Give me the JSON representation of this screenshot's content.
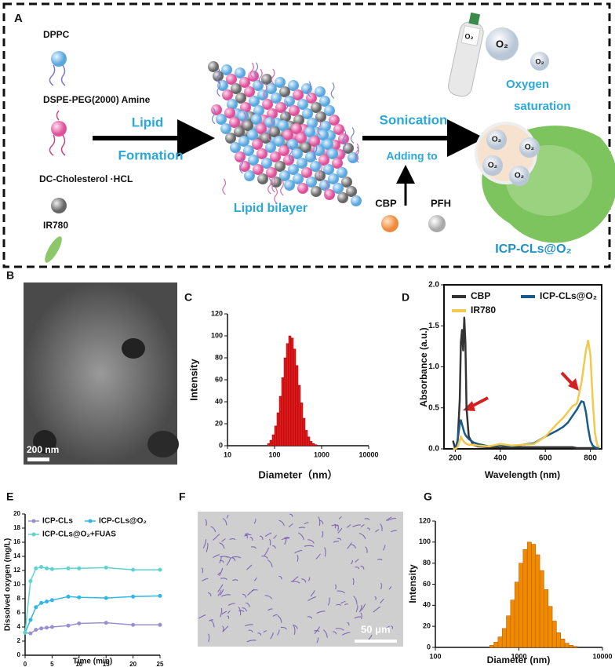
{
  "panel_labels": [
    "A",
    "B",
    "C",
    "D",
    "E",
    "F",
    "G"
  ],
  "diagram": {
    "components": [
      "DPPC",
      "DSPE-PEG(2000) Amine",
      "DC-Cholesterol ·HCL",
      "IR780"
    ],
    "arrow1_top": "Lipid",
    "arrow1_bottom": "Formation",
    "bilayer_label": "Lipid bilayer",
    "arrow2_top": "Sonication",
    "arrow2_bottom": "Adding to",
    "additives": [
      "CBP",
      "PFH"
    ],
    "oxygen_lines": [
      "Oxygen",
      "saturation"
    ],
    "o2_labels": [
      "O₂",
      "O₂",
      "O₂",
      "O₂",
      "O₂",
      "O₂",
      "O₂"
    ],
    "product": "ICP-CLs@O₂"
  },
  "micrographs": {
    "B_scale": "200 nm",
    "F_scale": "50 μm"
  },
  "chart_data": [
    {
      "type": "histogram",
      "x_label": "Diameter（nm）",
      "y_label": "Intensity",
      "color": "#e41a1c",
      "edge_color": "#8b0000",
      "log_x": true,
      "xlim": [
        10,
        10000
      ],
      "xticks": [
        10,
        100,
        1000,
        10000
      ],
      "ylim": [
        0,
        120
      ],
      "yticks": [
        0,
        20,
        40,
        60,
        80,
        100,
        120
      ],
      "bins": [
        70.8,
        79.4,
        89.1,
        100,
        112.2,
        125.9,
        141.3,
        158.5,
        177.8,
        199.5,
        223.9,
        251.2,
        281.8,
        316.2,
        354.8,
        398.1,
        446.7,
        501.2,
        562.3,
        631.0,
        707.9,
        794.3
      ],
      "values": [
        2,
        5,
        10,
        18,
        30,
        45,
        62,
        80,
        93,
        100,
        98,
        88,
        73,
        55,
        39,
        25,
        14,
        8,
        4,
        2,
        1
      ]
    },
    {
      "type": "line",
      "x_label": "Wavelength (nm)",
      "y_label": "Absorbance (a.u.)",
      "xlim": [
        150,
        850
      ],
      "xticks": [
        200,
        400,
        600,
        800
      ],
      "ylim": [
        0,
        2.0
      ],
      "yticks": [
        {
          "value": 0,
          "label": "0.0"
        },
        {
          "value": 0.5,
          "label": "0.5"
        },
        {
          "value": 1.0,
          "label": "1.0"
        },
        {
          "value": 1.5,
          "label": "1.5"
        },
        {
          "value": 2.0,
          "label": "2.0"
        }
      ],
      "x": [
        190,
        200,
        210,
        220,
        225,
        230,
        235,
        240,
        245,
        250,
        260,
        280,
        300,
        350,
        400,
        450,
        500,
        550,
        600,
        650,
        680,
        700,
        720,
        740,
        760,
        770,
        780,
        790,
        800,
        810,
        820,
        830,
        840
      ],
      "series": [
        {
          "name": "CBP",
          "color": "#333333",
          "values": [
            0.1,
            0,
            0.05,
            0.6,
            1.3,
            1.45,
            1.2,
            1.6,
            1.3,
            0.5,
            0.15,
            0.05,
            0.03,
            0.02,
            0.02,
            0.02,
            0.02,
            0.02,
            0.02,
            0.02,
            0.02,
            0.02,
            0.02,
            0.01,
            0.01,
            0.01,
            0.01,
            0.01,
            0.01,
            0.01,
            0.01,
            0.01,
            0.01
          ]
        },
        {
          "name": "ICP-CLs@O₂",
          "color": "#1a5a8a",
          "values": [
            0,
            0,
            0.1,
            0.3,
            0.35,
            0.3,
            0.25,
            0.2,
            0.17,
            0.15,
            0.12,
            0.08,
            0.06,
            0.03,
            0.05,
            0.03,
            0.05,
            0.07,
            0.15,
            0.22,
            0.27,
            0.32,
            0.4,
            0.48,
            0.58,
            0.57,
            0.45,
            0.25,
            0.1,
            0.04,
            0.02,
            0.01,
            0.01
          ]
        },
        {
          "name": "IR780",
          "color": "#f2c94c",
          "values": [
            0,
            0,
            0.02,
            0.1,
            0.15,
            0.12,
            0.1,
            0.08,
            0.07,
            0.06,
            0.05,
            0.05,
            0.04,
            0.03,
            0.06,
            0.04,
            0.05,
            0.06,
            0.15,
            0.3,
            0.38,
            0.45,
            0.52,
            0.55,
            0.8,
            1.0,
            1.2,
            1.32,
            1.15,
            0.6,
            0.2,
            0.05,
            0.02
          ]
        }
      ]
    },
    {
      "type": "line",
      "markers": true,
      "x_label": "Time (min)",
      "y_label": "Dissolved oxygen (mg/L)",
      "xlim": [
        0,
        25
      ],
      "xticks": [
        0,
        5,
        10,
        15,
        20,
        25
      ],
      "ylim": [
        0,
        20
      ],
      "yticks": [
        0,
        2,
        4,
        6,
        8,
        10,
        12,
        14,
        16,
        18,
        20
      ],
      "x": [
        0,
        1,
        2,
        3,
        4,
        5,
        8,
        10,
        15,
        20,
        25
      ],
      "series": [
        {
          "name": "ICP-CLs",
          "color": "#9b8fd4",
          "values": [
            3.2,
            3.1,
            3.6,
            3.8,
            3.9,
            4.0,
            4.2,
            4.5,
            4.6,
            4.3,
            4.3
          ]
        },
        {
          "name": "ICP-CLs@O₂",
          "color": "#2fb7e8",
          "values": [
            3.2,
            5,
            6.8,
            7.4,
            7.6,
            7.8,
            8.3,
            8.2,
            8.1,
            8.3,
            8.4
          ]
        },
        {
          "name": "ICP-CLs@O₂+FUAS",
          "color": "#5fd3d0",
          "values": [
            3.2,
            10.5,
            12.3,
            12.5,
            12.3,
            12.2,
            12.3,
            12.3,
            12.4,
            12.1,
            12.1
          ]
        }
      ]
    },
    {
      "type": "histogram",
      "x_label": "Diameter (nm)",
      "y_label": "Intensity",
      "color": "#f08a00",
      "edge_color": "#b35a00",
      "log_x": true,
      "xlim": [
        100,
        10000
      ],
      "xticks": [
        100,
        1000,
        10000
      ],
      "ylim": [
        0,
        120
      ],
      "yticks": [
        0,
        20,
        40,
        60,
        80,
        100,
        120
      ],
      "bins": [
        446.7,
        501.2,
        562.3,
        631.0,
        707.9,
        794.3,
        891.3,
        1000,
        1122,
        1259,
        1413,
        1585,
        1778,
        1995,
        2239,
        2512,
        2818,
        3162,
        3548,
        3981,
        4467,
        5012
      ],
      "values": [
        2,
        5,
        10,
        18,
        30,
        45,
        62,
        80,
        93,
        100,
        98,
        88,
        73,
        55,
        39,
        25,
        14,
        8,
        4,
        2,
        1
      ]
    }
  ]
}
